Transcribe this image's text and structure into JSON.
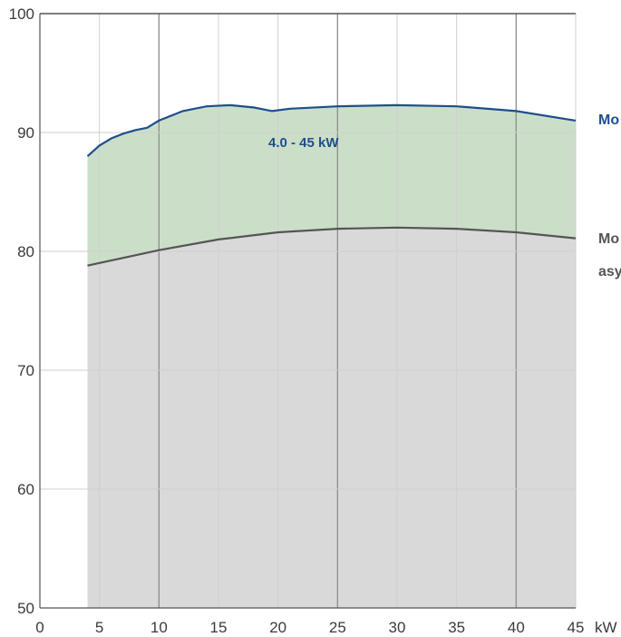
{
  "chart_data": {
    "type": "area",
    "title": "",
    "xlabel": "",
    "ylabel": "",
    "x_unit_label": "kW",
    "xlim": [
      0,
      45
    ],
    "ylim": [
      50,
      100
    ],
    "x_ticks": [
      0,
      5,
      10,
      15,
      20,
      25,
      30,
      35,
      40,
      45
    ],
    "y_ticks": [
      50,
      60,
      70,
      80,
      90,
      100
    ],
    "grid": true,
    "annotation": "4.0 - 45 kW",
    "series": [
      {
        "name": "Mo",
        "color": "#1f4e8c",
        "fill": "#cbdfc8",
        "x": [
          4,
          5,
          6,
          7,
          8,
          9,
          10,
          12,
          14,
          16,
          18,
          19.5,
          21,
          25,
          30,
          35,
          40,
          45
        ],
        "y": [
          88.0,
          88.9,
          89.5,
          89.9,
          90.2,
          90.4,
          91.0,
          91.8,
          92.2,
          92.3,
          92.1,
          91.8,
          92.0,
          92.2,
          92.3,
          92.2,
          91.8,
          91.0
        ]
      },
      {
        "name": "Mo asy",
        "color": "#555555",
        "fill": "#d9d9d9",
        "x": [
          4,
          10,
          15,
          20,
          25,
          30,
          35,
          40,
          45
        ],
        "y": [
          78.8,
          80.1,
          81.0,
          81.6,
          81.9,
          82.0,
          81.9,
          81.6,
          81.1
        ]
      }
    ]
  },
  "labels": {
    "series1_label": "Mo",
    "series2_line1": "Mo",
    "series2_line2": "asy"
  }
}
